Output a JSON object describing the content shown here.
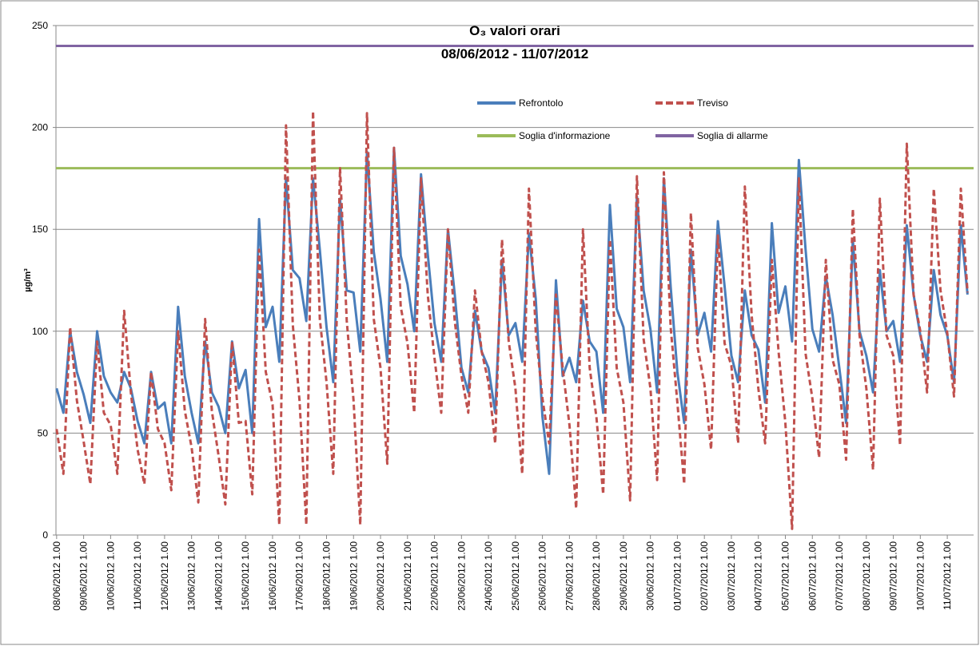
{
  "chart_data": {
    "type": "line",
    "title": "O₃ valori orari",
    "subtitle": "08/06/2012 - 11/07/2012",
    "y_label": "µg/m³",
    "categories": [
      "08/06/2012 1.00",
      null,
      null,
      null,
      "09/06/2012 1.00",
      null,
      null,
      null,
      "10/06/2012 1.00",
      null,
      null,
      null,
      "11/06/2012 1.00",
      null,
      null,
      null,
      "12/06/2012 1.00",
      null,
      null,
      null,
      "13/06/2012 1.00",
      null,
      null,
      null,
      "14/06/2012 1.00",
      null,
      null,
      null,
      "15/06/2012 1.00",
      null,
      null,
      null,
      "16/06/2012 1.00",
      null,
      null,
      null,
      "17/06/2012 1.00",
      null,
      null,
      null,
      "18/06/2012 1.00",
      null,
      null,
      null,
      "19/06/2012 1.00",
      null,
      null,
      null,
      "20/06/2012 1.00",
      null,
      null,
      null,
      "21/06/2012 1.00",
      null,
      null,
      null,
      "22/06/2012 1.00",
      null,
      null,
      null,
      "23/06/2012 1.00",
      null,
      null,
      null,
      "24/06/2012 1.00",
      null,
      null,
      null,
      "25/06/2012 1.00",
      null,
      null,
      null,
      "26/06/2012 1.00",
      null,
      null,
      null,
      "27/06/2012 1.00",
      null,
      null,
      null,
      "28/06/2012 1.00",
      null,
      null,
      null,
      "29/06/2012 1.00",
      null,
      null,
      null,
      "30/06/2012 1.00",
      null,
      null,
      null,
      "01/07/2012 1.00",
      null,
      null,
      null,
      "02/07/2012 1.00",
      null,
      null,
      null,
      "03/07/2012 1.00",
      null,
      null,
      null,
      "04/07/2012 1.00",
      null,
      null,
      null,
      "05/07/2012 1.00",
      null,
      null,
      null,
      "06/07/2012 1.00",
      null,
      null,
      null,
      "07/07/2012 1.00",
      null,
      null,
      null,
      "08/07/2012 1.00",
      null,
      null,
      null,
      "09/07/2012 1.00",
      null,
      null,
      null,
      "10/07/2012 1.00",
      null,
      null,
      null,
      "11/07/2012 1.00",
      null,
      null,
      null
    ],
    "series": [
      {
        "name": "Refrontolo",
        "color": "#4a7ebb",
        "dashed": false,
        "values": [
          72,
          60,
          100,
          80,
          69,
          55,
          100,
          78,
          70,
          65,
          80,
          72,
          56,
          45,
          80,
          62,
          65,
          45,
          112,
          78,
          60,
          45,
          95,
          70,
          63,
          50,
          95,
          72,
          81,
          50,
          155,
          102,
          112,
          85,
          175,
          130,
          126,
          105,
          175,
          140,
          102,
          75,
          165,
          120,
          119,
          90,
          188,
          139,
          116,
          85,
          190,
          137,
          123,
          100,
          177,
          138,
          104,
          85,
          150,
          118,
          82,
          70,
          110,
          90,
          82,
          60,
          135,
          98,
          104,
          85,
          148,
          116,
          58,
          30,
          125,
          78,
          87,
          75,
          115,
          95,
          90,
          60,
          162,
          111,
          102,
          75,
          166,
          120,
          101,
          70,
          175,
          122,
          80,
          55,
          140,
          98,
          109,
          90,
          154,
          122,
          88,
          75,
          120,
          98,
          91,
          65,
          153,
          109,
          122,
          95,
          184,
          140,
          101,
          90,
          127,
          108,
          82,
          55,
          145,
          100,
          88,
          70,
          130,
          100,
          105,
          85,
          152,
          118,
          98,
          85,
          130,
          108,
          98,
          75,
          152,
          118
        ]
      },
      {
        "name": "Treviso",
        "color": "#c0504d",
        "dashed": true,
        "values": [
          52,
          30,
          102,
          66,
          46,
          25,
          95,
          60,
          54,
          30,
          110,
          70,
          42,
          25,
          80,
          52,
          45,
          22,
          100,
          61,
          43,
          16,
          106,
          61,
          39,
          15,
          95,
          55,
          56,
          20,
          140,
          80,
          64,
          5,
          201,
          103,
          66,
          5,
          208,
          106,
          75,
          30,
          180,
          105,
          66,
          5,
          207,
          106,
          82,
          35,
          190,
          112,
          94,
          60,
          175,
          118,
          87,
          60,
          150,
          105,
          78,
          60,
          120,
          90,
          75,
          45,
          145,
          95,
          72,
          30,
          170,
          100,
          67,
          45,
          118,
          82,
          54,
          13,
          150,
          82,
          58,
          20,
          145,
          82,
          65,
          17,
          176,
          96,
          72,
          27,
          178,
          102,
          65,
          25,
          158,
          92,
          74,
          42,
          147,
          94,
          83,
          45,
          171,
          108,
          72,
          45,
          135,
          90,
          55,
          3,
          175,
          89,
          67,
          38,
          135,
          86,
          74,
          37,
          160,
          98,
          72,
          32,
          165,
          98,
          88,
          44,
          192,
          118,
          100,
          70,
          170,
          120,
          99,
          68,
          170,
          119
        ]
      }
    ],
    "thresholds": [
      {
        "name": "Soglia d'informazione",
        "color": "#9bbb59",
        "value": 180
      },
      {
        "name": "Soglia di allarme",
        "color": "#8064a2",
        "value": 240
      }
    ],
    "ylim": [
      0,
      250
    ],
    "yticks": [
      0,
      50,
      100,
      150,
      200,
      250
    ],
    "grid": true
  }
}
